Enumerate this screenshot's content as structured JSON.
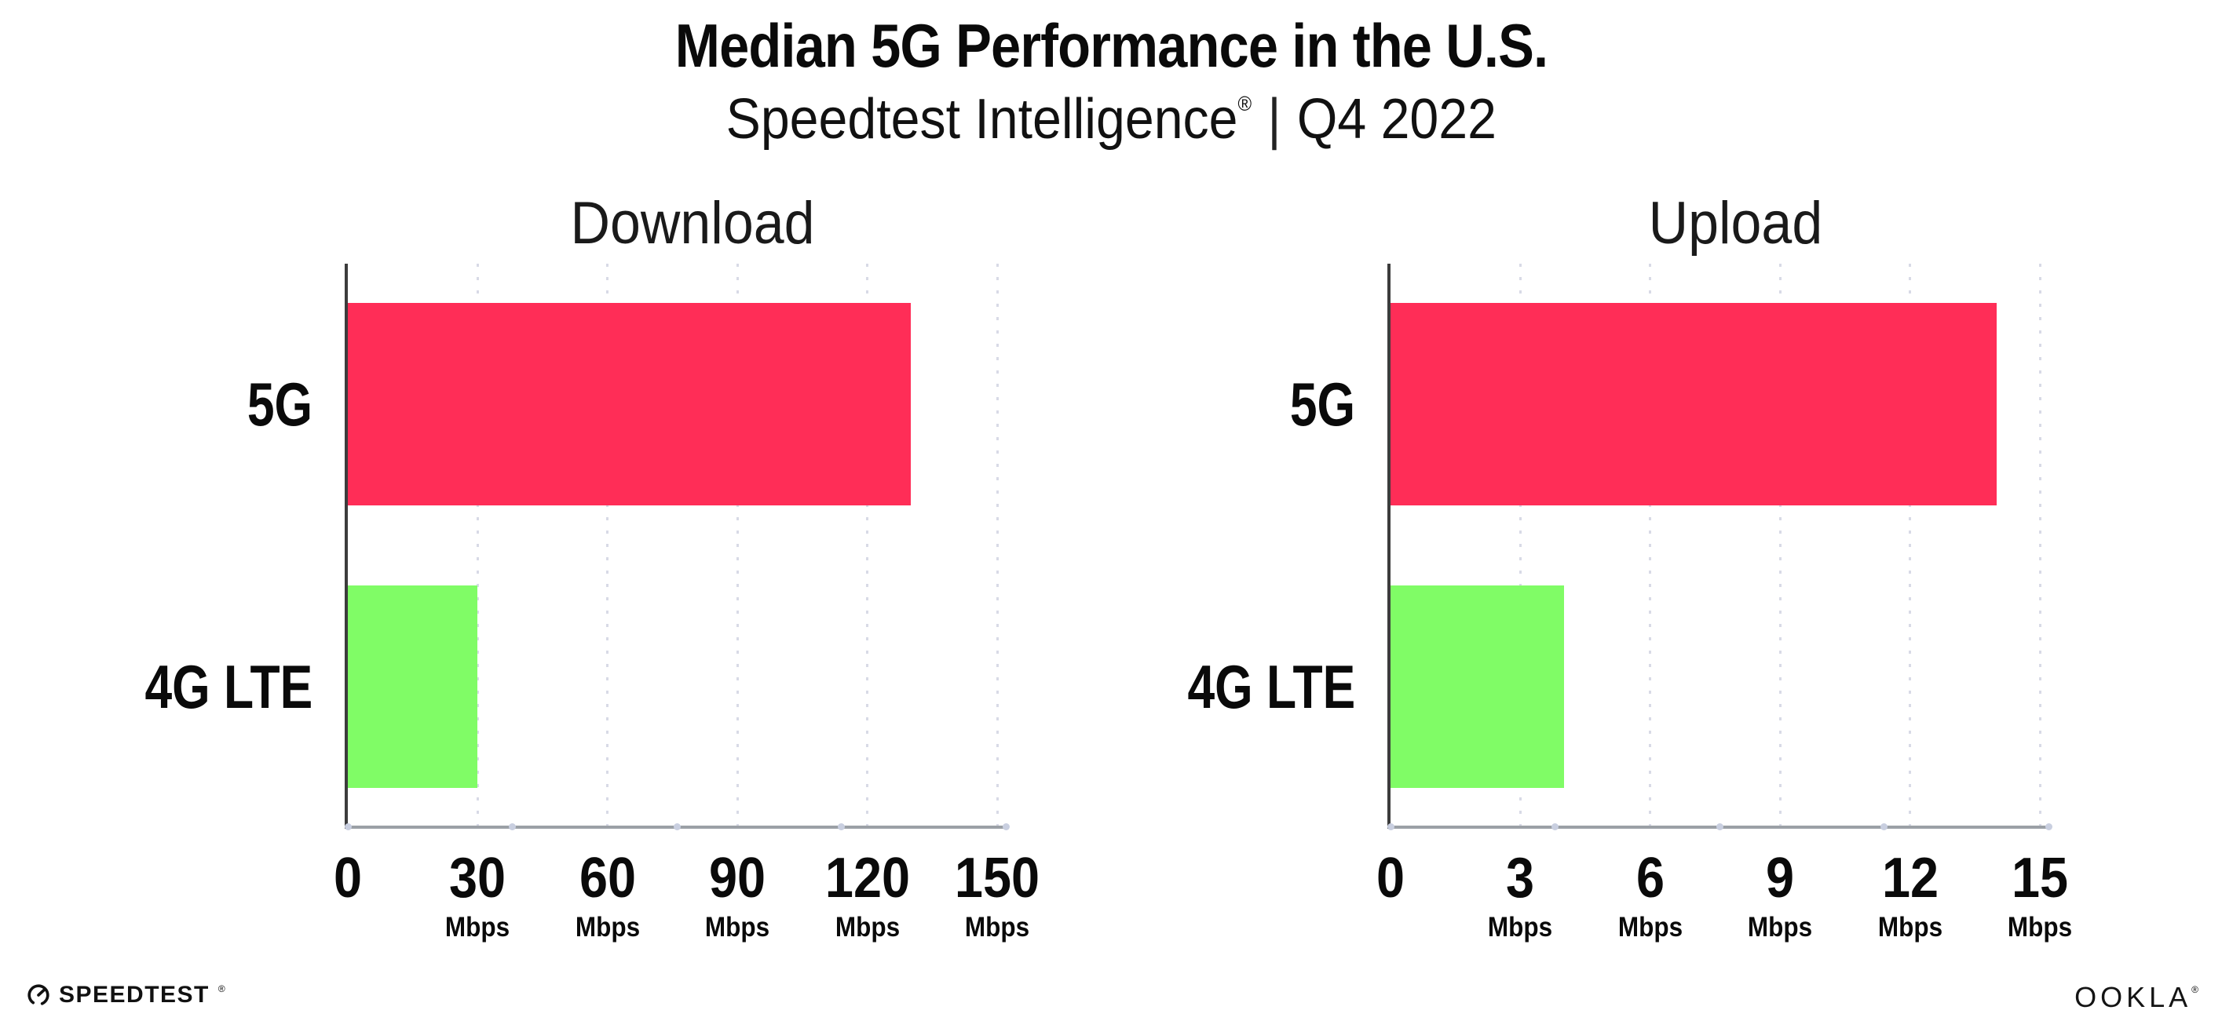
{
  "header": {
    "title": "Median 5G Performance in the U.S.",
    "subtitle_brand": "Speedtest Intelligence",
    "subtitle_reg": "®",
    "subtitle_sep": "|",
    "subtitle_period": "Q4 2022"
  },
  "chart_data": [
    {
      "type": "bar",
      "orientation": "horizontal",
      "title": "Download",
      "categories": [
        "5G",
        "4G LTE"
      ],
      "values": [
        130,
        30
      ],
      "unit": "Mbps",
      "xlim": [
        0,
        150
      ],
      "xticks": [
        {
          "label": "0",
          "unit": ""
        },
        {
          "label": "30",
          "unit": "Mbps"
        },
        {
          "label": "60",
          "unit": "Mbps"
        },
        {
          "label": "90",
          "unit": "Mbps"
        },
        {
          "label": "120",
          "unit": "Mbps"
        },
        {
          "label": "150",
          "unit": "Mbps"
        }
      ],
      "bar_colors": [
        "#FF2D57",
        "#80FC66"
      ],
      "grid": "vertical-dotted",
      "legend": "none"
    },
    {
      "type": "bar",
      "orientation": "horizontal",
      "title": "Upload",
      "categories": [
        "5G",
        "4G LTE"
      ],
      "values": [
        14,
        4
      ],
      "unit": "Mbps",
      "xlim": [
        0,
        15
      ],
      "xticks": [
        {
          "label": "0",
          "unit": ""
        },
        {
          "label": "3",
          "unit": "Mbps"
        },
        {
          "label": "6",
          "unit": "Mbps"
        },
        {
          "label": "9",
          "unit": "Mbps"
        },
        {
          "label": "12",
          "unit": "Mbps"
        },
        {
          "label": "15",
          "unit": "Mbps"
        }
      ],
      "bar_colors": [
        "#FF2D57",
        "#80FC66"
      ],
      "grid": "vertical-dotted",
      "legend": "none"
    }
  ],
  "footer": {
    "speedtest_label": "SPEEDTEST",
    "speedtest_reg": "®",
    "ookla_label": "OOKLA",
    "ookla_reg": "®"
  },
  "colors": {
    "bar_5g": "#FF2D57",
    "bar_4g_lte": "#80FC66",
    "gridline": "#D8DAE6",
    "x_axis_line": "#9BA0A6",
    "y_axis_line": "#3C3C3C",
    "text": "#0A0A0A"
  }
}
